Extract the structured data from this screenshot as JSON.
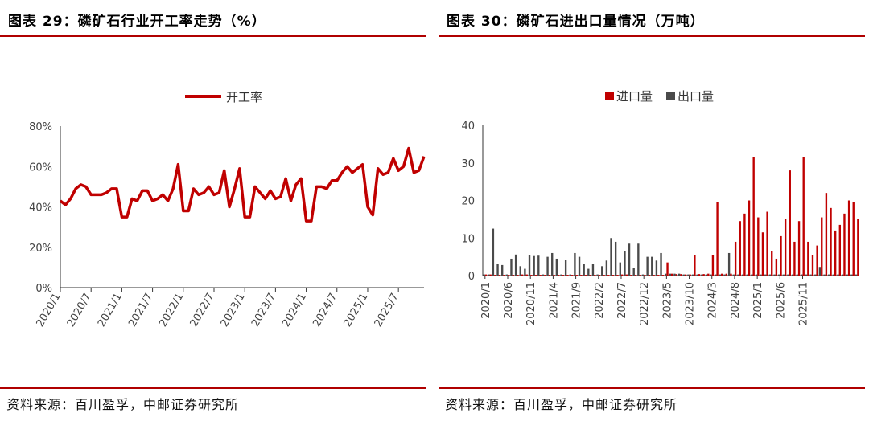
{
  "left": {
    "title": "图表 29：磷矿石行业开工率走势（%）",
    "source": "资料来源：百川盈孚，中邮证券研究所",
    "chart_data": {
      "type": "line",
      "title": "",
      "xlabel": "",
      "ylabel": "",
      "ylim": [
        0,
        80
      ],
      "y_ticks": [
        "0%",
        "20%",
        "40%",
        "60%",
        "80%"
      ],
      "x_ticks": [
        "2020/1",
        "2020/7",
        "2021/1",
        "2021/7",
        "2022/1",
        "2022/7",
        "2023/1",
        "2023/7",
        "2024/1",
        "2024/7",
        "2025/1",
        "2025/7"
      ],
      "legend": "top-center",
      "series": [
        {
          "name": "开工率",
          "color": "#c00000",
          "values": [
            43,
            41,
            44,
            49,
            51,
            50,
            46,
            46,
            46,
            47,
            49,
            49,
            35,
            35,
            44,
            43,
            48,
            48,
            43,
            44,
            46,
            43,
            49,
            61,
            38,
            38,
            49,
            46,
            47,
            50,
            46,
            47,
            58,
            40,
            49,
            59,
            35,
            35,
            50,
            47,
            44,
            48,
            44,
            45,
            54,
            43,
            51,
            54,
            33,
            33,
            50,
            50,
            49,
            53,
            53,
            57,
            60,
            57,
            59,
            61,
            40,
            36,
            59,
            56,
            57,
            64,
            58,
            60,
            69,
            57,
            58,
            65
          ]
        }
      ]
    }
  },
  "right": {
    "title": "图表 30：磷矿石进出口量情况（万吨）",
    "source": "资料来源：百川盈孚，中邮证券研究所",
    "chart_data": {
      "type": "bar",
      "title": "",
      "xlabel": "",
      "ylabel": "",
      "ylim": [
        0,
        40
      ],
      "y_ticks": [
        "0",
        "10",
        "20",
        "30",
        "40"
      ],
      "x_ticks": [
        "2020/1",
        "2020/6",
        "2020/11",
        "2021/4",
        "2021/9",
        "2022/2",
        "2022/7",
        "2022/12",
        "2023/5",
        "2023/10",
        "2024/3",
        "2024/8",
        "2025/1",
        "2025/6",
        "2025/11"
      ],
      "legend": "top-center",
      "series": [
        {
          "name": "进口量",
          "color": "#c00000",
          "values": [
            0.3,
            0.3,
            0.2,
            0.2,
            0.2,
            0.2,
            0.2,
            0.2,
            0.3,
            0.3,
            0.2,
            0.2,
            0.2,
            0.2,
            0.2,
            0.2,
            0.2,
            0.2,
            0.2,
            0.2,
            0.2,
            0.2,
            0.2,
            0.2,
            0.2,
            0.2,
            0.2,
            0.2,
            0.2,
            0.2,
            0.3,
            0.3,
            0.2,
            0.2,
            0.2,
            0.2,
            0.2,
            0.2,
            0.2,
            0.2,
            3.5,
            0.5,
            0.4,
            0.4,
            0.3,
            0.3,
            5.5,
            0.4,
            0.4,
            0.5,
            5.5,
            19.5,
            0.5,
            0.5,
            0.5,
            9,
            14.5,
            16.5,
            20,
            31.5,
            15.5,
            11.5,
            17,
            6.5,
            4.5,
            10.5,
            15,
            28,
            9,
            14.5,
            31.5,
            9,
            5.5,
            8,
            15.5,
            22,
            18,
            12,
            13.5,
            16.5,
            20,
            19.5,
            15
          ]
        },
        {
          "name": "出口量",
          "color": "#4a4a4a",
          "values": [
            0.3,
            0.3,
            12.5,
            3.2,
            2.8,
            0.3,
            4.5,
            5.6,
            2.5,
            1.8,
            5.4,
            5.2,
            5.3,
            0.3,
            5,
            6,
            4.5,
            0.3,
            4.2,
            0.3,
            6,
            5,
            3,
            1.8,
            3.2,
            0.3,
            2.5,
            4,
            10,
            9,
            3.5,
            6.5,
            8.5,
            2,
            8.5,
            0.3,
            5,
            5,
            4,
            6,
            0.5,
            0.5,
            0.5,
            0.5,
            0.3,
            0.3,
            0.3,
            0.3,
            0.3,
            0.3,
            0.3,
            0.3,
            0.3,
            0.3,
            6,
            0.3,
            0.3,
            0.3,
            0.3,
            0.3,
            0.3,
            0.3,
            0.3,
            0.3,
            0.3,
            0.3,
            0.3,
            0.3,
            0.3,
            0.3,
            0.3,
            0.3,
            0.3,
            0.3,
            2.3,
            0.3,
            0.3,
            0.3,
            0.3,
            0.3,
            0.3,
            0.3,
            0.3
          ]
        }
      ]
    }
  }
}
